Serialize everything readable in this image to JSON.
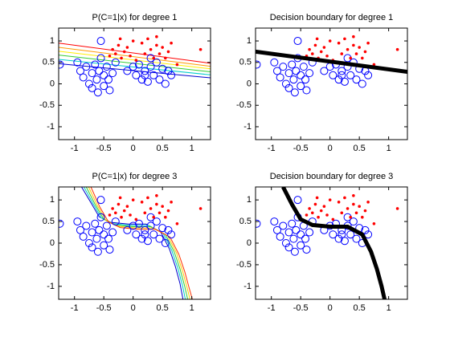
{
  "chart_data": [
    {
      "type": "scatter",
      "title": "P(C=1|x) for degree 1",
      "xlim": [
        -1.27,
        1.32
      ],
      "xticks": [
        -1,
        -0.5,
        0,
        0.5,
        1
      ],
      "ylim": [
        -1.3,
        1.3
      ],
      "yticks": [
        -1,
        -0.5,
        0,
        0.5,
        1
      ],
      "series": [
        {
          "style": "line",
          "color": "#ff0000",
          "width": 1,
          "x": [
            -1.27,
            1.32
          ],
          "values": [
            0.95,
            0.48
          ]
        },
        {
          "style": "line",
          "color": "#ff9900",
          "width": 1,
          "x": [
            -1.27,
            1.32
          ],
          "values": [
            0.85,
            0.41
          ]
        },
        {
          "style": "line",
          "color": "#ffee00",
          "width": 1,
          "x": [
            -1.27,
            1.32
          ],
          "values": [
            0.76,
            0.35
          ]
        },
        {
          "style": "line",
          "color": "#33cc33",
          "width": 1,
          "x": [
            -1.27,
            1.32
          ],
          "values": [
            0.67,
            0.28
          ]
        },
        {
          "style": "line",
          "color": "#00cccc",
          "width": 1,
          "x": [
            -1.27,
            1.32
          ],
          "values": [
            0.57,
            0.21
          ]
        },
        {
          "style": "line",
          "color": "#0000cc",
          "width": 1,
          "x": [
            -1.27,
            1.32
          ],
          "values": [
            0.47,
            0.14
          ]
        },
        {
          "style": "circle",
          "color": "#0000ff",
          "x": [
            -1.25,
            -0.95,
            -0.9,
            -0.85,
            -0.8,
            -0.75,
            -0.7,
            -0.7,
            -0.65,
            -0.62,
            -0.6,
            -0.58,
            -0.55,
            -0.5,
            -0.5,
            -0.45,
            -0.42,
            -0.4,
            -0.35,
            -0.3,
            -0.55,
            0.0,
            0.05,
            0.1,
            0.15,
            0.2,
            0.25,
            0.3,
            0.35,
            0.4,
            0.45,
            0.5,
            0.55,
            0.6,
            0.65,
            0.3,
            0.2,
            -0.1
          ],
          "values": [
            0.45,
            0.5,
            0.3,
            0.15,
            0.4,
            0.0,
            0.25,
            -0.1,
            0.45,
            0.1,
            -0.2,
            0.3,
            0.6,
            0.2,
            -0.05,
            0.4,
            0.1,
            -0.15,
            0.25,
            0.5,
            1.0,
            0.4,
            0.2,
            0.45,
            0.1,
            0.3,
            0.05,
            0.4,
            0.2,
            0.5,
            0.1,
            0.35,
            0.0,
            0.3,
            0.2,
            0.6,
            0.2,
            0.3
          ]
        },
        {
          "style": "dot",
          "color": "#ff0000",
          "x": [
            -0.4,
            -0.35,
            -0.3,
            -0.25,
            -0.2,
            -0.15,
            -0.1,
            -0.05,
            0.0,
            -0.22,
            0.15,
            0.2,
            0.25,
            0.3,
            0.35,
            0.4,
            0.45,
            0.5,
            0.55,
            0.6,
            0.65,
            0.75,
            1.15,
            0.05,
            0.4
          ],
          "values": [
            0.65,
            0.8,
            0.7,
            0.9,
            0.6,
            0.75,
            0.85,
            0.65,
            1.0,
            1.05,
            0.95,
            0.7,
            1.05,
            0.8,
            0.6,
            0.9,
            0.7,
            0.85,
            0.6,
            0.75,
            0.95,
            0.45,
            0.8,
            0.55,
            1.1
          ]
        }
      ]
    },
    {
      "type": "scatter",
      "title": "Decision boundary for degree 1",
      "xlim": [
        -1.27,
        1.32
      ],
      "xticks": [
        -1,
        -0.5,
        0,
        0.5,
        1
      ],
      "ylim": [
        -1.3,
        1.3
      ],
      "yticks": [
        -1,
        -0.5,
        0,
        0.5,
        1
      ],
      "series": [
        {
          "style": "circle",
          "color": "#0000ff",
          "x": [
            -1.25,
            -0.95,
            -0.9,
            -0.85,
            -0.8,
            -0.75,
            -0.7,
            -0.7,
            -0.65,
            -0.62,
            -0.6,
            -0.58,
            -0.55,
            -0.5,
            -0.5,
            -0.45,
            -0.42,
            -0.4,
            -0.35,
            -0.3,
            -0.55,
            0.0,
            0.05,
            0.1,
            0.15,
            0.2,
            0.25,
            0.3,
            0.35,
            0.4,
            0.45,
            0.5,
            0.55,
            0.6,
            0.65,
            0.3,
            0.2,
            -0.1
          ],
          "values": [
            0.45,
            0.5,
            0.3,
            0.15,
            0.4,
            0.0,
            0.25,
            -0.1,
            0.45,
            0.1,
            -0.2,
            0.3,
            0.6,
            0.2,
            -0.05,
            0.4,
            0.1,
            -0.15,
            0.25,
            0.5,
            1.0,
            0.4,
            0.2,
            0.45,
            0.1,
            0.3,
            0.05,
            0.4,
            0.2,
            0.5,
            0.1,
            0.35,
            0.0,
            0.3,
            0.2,
            0.6,
            0.2,
            0.3
          ]
        },
        {
          "style": "dot",
          "color": "#ff0000",
          "x": [
            -0.4,
            -0.35,
            -0.3,
            -0.25,
            -0.2,
            -0.15,
            -0.1,
            -0.05,
            0.0,
            -0.22,
            0.15,
            0.2,
            0.25,
            0.3,
            0.35,
            0.4,
            0.45,
            0.5,
            0.55,
            0.6,
            0.65,
            0.75,
            1.15,
            0.05,
            0.4
          ],
          "values": [
            0.65,
            0.8,
            0.7,
            0.9,
            0.6,
            0.75,
            0.85,
            0.65,
            1.0,
            1.05,
            0.95,
            0.7,
            1.05,
            0.8,
            0.6,
            0.9,
            0.7,
            0.85,
            0.6,
            0.75,
            0.95,
            0.45,
            0.8,
            0.55,
            1.1
          ]
        },
        {
          "style": "line",
          "color": "#000000",
          "width": 5,
          "x": [
            -1.27,
            1.32
          ],
          "values": [
            0.75,
            0.28
          ]
        }
      ]
    },
    {
      "type": "scatter",
      "title": "P(C=1|x) for degree 3",
      "xlim": [
        -1.27,
        1.32
      ],
      "xticks": [
        -1,
        -0.5,
        0,
        0.5,
        1
      ],
      "ylim": [
        -1.3,
        1.3
      ],
      "yticks": [
        -1,
        -0.5,
        0,
        0.5,
        1
      ],
      "series": [
        {
          "style": "line",
          "color": "#0000cc",
          "width": 1,
          "x": [
            -0.88,
            -0.73,
            -0.58,
            -0.38,
            -0.08,
            0.22,
            0.47,
            0.62,
            0.72,
            0.8,
            0.85
          ],
          "values": [
            1.3,
            0.96,
            0.61,
            0.48,
            0.44,
            0.44,
            0.26,
            -0.14,
            -0.54,
            -0.94,
            -1.3
          ]
        },
        {
          "style": "line",
          "color": "#00cccc",
          "width": 1,
          "x": [
            -0.84,
            -0.69,
            -0.54,
            -0.34,
            -0.04,
            0.26,
            0.51,
            0.66,
            0.76,
            0.84,
            0.89
          ],
          "values": [
            1.3,
            0.93,
            0.58,
            0.45,
            0.41,
            0.41,
            0.23,
            -0.17,
            -0.57,
            -0.97,
            -1.3
          ]
        },
        {
          "style": "line",
          "color": "#33cc33",
          "width": 1,
          "x": [
            -0.8,
            -0.65,
            -0.5,
            -0.3,
            0,
            0.3,
            0.55,
            0.7,
            0.8,
            0.88,
            0.93
          ],
          "values": [
            1.3,
            0.9,
            0.55,
            0.42,
            0.38,
            0.38,
            0.2,
            -0.2,
            -0.6,
            -1.0,
            -1.3
          ]
        },
        {
          "style": "line",
          "color": "#ffcc00",
          "width": 1,
          "x": [
            -0.76,
            -0.61,
            -0.46,
            -0.26,
            0.04,
            0.34,
            0.59,
            0.74,
            0.84,
            0.92,
            0.97
          ],
          "values": [
            1.3,
            0.87,
            0.52,
            0.39,
            0.35,
            0.35,
            0.17,
            -0.23,
            -0.63,
            -1.03,
            -1.3
          ]
        },
        {
          "style": "line",
          "color": "#ff3300",
          "width": 1,
          "x": [
            -0.72,
            -0.57,
            -0.42,
            -0.22,
            0.08,
            0.38,
            0.63,
            0.78,
            0.88,
            0.96,
            1.01
          ],
          "values": [
            1.3,
            0.84,
            0.49,
            0.36,
            0.32,
            0.32,
            0.14,
            -0.26,
            -0.66,
            -1.06,
            -1.3
          ]
        },
        {
          "style": "circle",
          "color": "#0000ff",
          "x": [
            -1.25,
            -0.95,
            -0.9,
            -0.85,
            -0.8,
            -0.75,
            -0.7,
            -0.7,
            -0.65,
            -0.62,
            -0.6,
            -0.58,
            -0.55,
            -0.5,
            -0.5,
            -0.45,
            -0.42,
            -0.4,
            -0.35,
            -0.3,
            -0.55,
            0.0,
            0.05,
            0.1,
            0.15,
            0.2,
            0.25,
            0.3,
            0.35,
            0.4,
            0.45,
            0.5,
            0.55,
            0.6,
            0.65,
            0.3,
            0.2,
            -0.1
          ],
          "values": [
            0.45,
            0.5,
            0.3,
            0.15,
            0.4,
            0.0,
            0.25,
            -0.1,
            0.45,
            0.1,
            -0.2,
            0.3,
            0.6,
            0.2,
            -0.05,
            0.4,
            0.1,
            -0.15,
            0.25,
            0.5,
            1.0,
            0.4,
            0.2,
            0.45,
            0.1,
            0.3,
            0.05,
            0.4,
            0.2,
            0.5,
            0.1,
            0.35,
            0.0,
            0.3,
            0.2,
            0.6,
            0.2,
            0.3
          ]
        },
        {
          "style": "dot",
          "color": "#ff0000",
          "x": [
            -0.4,
            -0.35,
            -0.3,
            -0.25,
            -0.2,
            -0.15,
            -0.1,
            -0.05,
            0.0,
            -0.22,
            0.15,
            0.2,
            0.25,
            0.3,
            0.35,
            0.4,
            0.45,
            0.5,
            0.55,
            0.6,
            0.65,
            0.75,
            1.15,
            0.05,
            0.4
          ],
          "values": [
            0.65,
            0.8,
            0.7,
            0.9,
            0.6,
            0.75,
            0.85,
            0.65,
            1.0,
            1.05,
            0.95,
            0.7,
            1.05,
            0.8,
            0.6,
            0.9,
            0.7,
            0.85,
            0.6,
            0.75,
            0.95,
            0.45,
            0.8,
            0.55,
            1.1
          ]
        }
      ]
    },
    {
      "type": "scatter",
      "title": "Decision boundary for degree 3",
      "xlim": [
        -1.27,
        1.32
      ],
      "xticks": [
        -1,
        -0.5,
        0,
        0.5,
        1
      ],
      "ylim": [
        -1.3,
        1.3
      ],
      "yticks": [
        -1,
        -0.5,
        0,
        0.5,
        1
      ],
      "series": [
        {
          "style": "circle",
          "color": "#0000ff",
          "x": [
            -1.25,
            -0.95,
            -0.9,
            -0.85,
            -0.8,
            -0.75,
            -0.7,
            -0.7,
            -0.65,
            -0.62,
            -0.6,
            -0.58,
            -0.55,
            -0.5,
            -0.5,
            -0.45,
            -0.42,
            -0.4,
            -0.35,
            -0.3,
            -0.55,
            0.0,
            0.05,
            0.1,
            0.15,
            0.2,
            0.25,
            0.3,
            0.35,
            0.4,
            0.45,
            0.5,
            0.55,
            0.6,
            0.65,
            0.3,
            0.2,
            -0.1
          ],
          "values": [
            0.45,
            0.5,
            0.3,
            0.15,
            0.4,
            0.0,
            0.25,
            -0.1,
            0.45,
            0.1,
            -0.2,
            0.3,
            0.6,
            0.2,
            -0.05,
            0.4,
            0.1,
            -0.15,
            0.25,
            0.5,
            1.0,
            0.4,
            0.2,
            0.45,
            0.1,
            0.3,
            0.05,
            0.4,
            0.2,
            0.5,
            0.1,
            0.35,
            0.0,
            0.3,
            0.2,
            0.6,
            0.2,
            0.3
          ]
        },
        {
          "style": "dot",
          "color": "#ff0000",
          "x": [
            -0.4,
            -0.35,
            -0.3,
            -0.25,
            -0.2,
            -0.15,
            -0.1,
            -0.05,
            0.0,
            -0.22,
            0.15,
            0.2,
            0.25,
            0.3,
            0.35,
            0.4,
            0.45,
            0.5,
            0.55,
            0.6,
            0.65,
            0.75,
            1.15,
            0.05,
            0.4
          ],
          "values": [
            0.65,
            0.8,
            0.7,
            0.9,
            0.6,
            0.75,
            0.85,
            0.65,
            1.0,
            1.05,
            0.95,
            0.7,
            1.05,
            0.8,
            0.6,
            0.9,
            0.7,
            0.85,
            0.6,
            0.75,
            0.95,
            0.45,
            0.8,
            0.55,
            1.1
          ]
        },
        {
          "style": "line",
          "color": "#000000",
          "width": 5,
          "x": [
            -0.8,
            -0.65,
            -0.5,
            -0.3,
            0,
            0.3,
            0.55,
            0.7,
            0.8,
            0.88,
            0.93
          ],
          "values": [
            1.3,
            0.9,
            0.55,
            0.42,
            0.38,
            0.38,
            0.2,
            -0.2,
            -0.6,
            -1.0,
            -1.3
          ]
        }
      ]
    }
  ]
}
